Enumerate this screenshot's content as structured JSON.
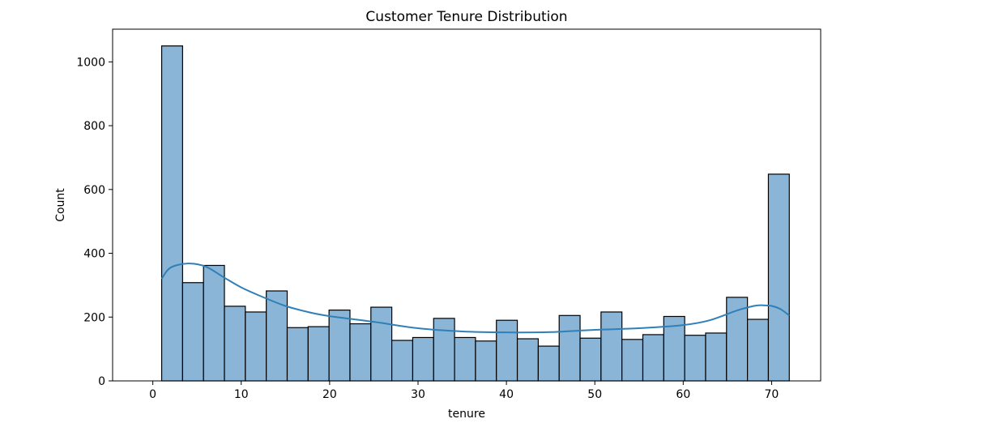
{
  "chart_data": {
    "type": "bar",
    "title": "Customer Tenure Distribution",
    "xlabel": "tenure",
    "ylabel": "Count",
    "xlim": [
      -4.55,
      75.55
    ],
    "ylim": [
      0,
      1102.5
    ],
    "x_ticks": [
      0,
      10,
      20,
      30,
      40,
      50,
      60,
      70
    ],
    "y_ticks": [
      0,
      200,
      400,
      600,
      800,
      1000
    ],
    "bin_edges": [
      1,
      3.3667,
      5.7333,
      8.1,
      10.4667,
      12.8333,
      15.2,
      17.5667,
      19.9333,
      22.3,
      24.6667,
      27.0333,
      29.4,
      31.7667,
      34.1333,
      36.5,
      38.8667,
      41.2333,
      43.6,
      45.9667,
      48.3333,
      50.7,
      53.0667,
      55.4333,
      57.8,
      60.1667,
      62.5333,
      64.9,
      67.2667,
      69.6333,
      72
    ],
    "counts": [
      1050,
      308,
      362,
      234,
      216,
      282,
      167,
      170,
      222,
      179,
      231,
      127,
      136,
      196,
      136,
      125,
      190,
      132,
      109,
      205,
      134,
      216,
      130,
      145,
      202,
      143,
      150,
      262,
      193,
      648
    ],
    "kde": {
      "x": [
        1,
        2,
        4,
        6,
        8,
        10,
        12,
        15,
        18,
        20,
        25,
        30,
        35,
        40,
        45,
        50,
        55,
        60,
        63,
        66,
        68,
        69,
        70,
        71,
        72
      ],
      "y": [
        320,
        355,
        368,
        358,
        325,
        293,
        268,
        235,
        213,
        203,
        185,
        165,
        155,
        152,
        153,
        160,
        165,
        175,
        190,
        220,
        235,
        237,
        235,
        225,
        205
      ]
    },
    "bar_color": "#8ab5d6",
    "bar_edge_color": "#000000",
    "kde_color": "#2f80b8",
    "grid": false,
    "legend": "none"
  }
}
